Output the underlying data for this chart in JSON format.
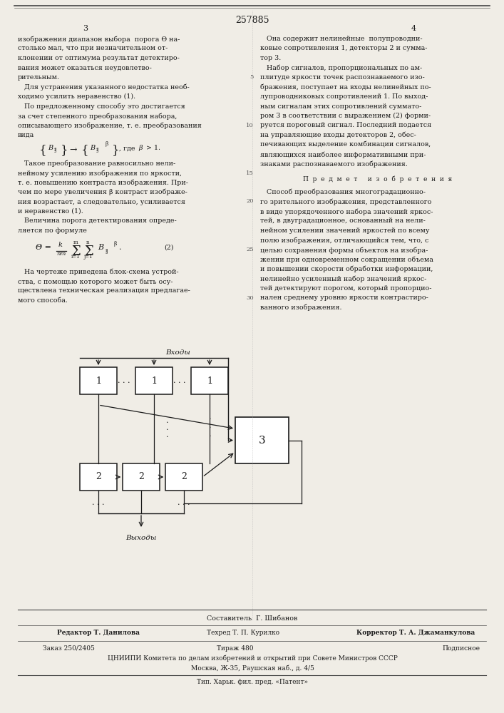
{
  "bg_color": "#f0ede6",
  "text_color": "#1a1a1a",
  "patent_number": "257885",
  "page_left": "3",
  "page_right": "4",
  "col1_lines_1": [
    "изображения диапазон выбора  порога Θ на-",
    "столько мал, что при незначительном от-",
    "клонении от оптимума результат детектиро-",
    "вания может оказаться неудовлетво-",
    "рительным.",
    "   Для устранения указанного недостатка необ-",
    "ходимо усилить неравенство (1).",
    "   По предложенному способу это достигается",
    "за счет степенного преобразования набора,",
    "описывающего изображение, т. е. преобразования",
    "вида"
  ],
  "col1_lines_2": [
    "   Такое преобразование равносильно нели-",
    "нейному усилению изображения по яркости,",
    "т. е. повышению контраста изображения. При-",
    "чем по мере увеличения β контраст изображе-",
    "ния возрастает, а следовательно, усиливается",
    "и неравенство (1).",
    "   Величина порога детектирования опреде-",
    "ляется по формуле"
  ],
  "col1_lines_3": [
    "   На чертеже приведена блок-схема устрой-",
    "ства, с помощью которого может быть осу-",
    "ществлена техническая реализация предлагае-",
    "мого способа."
  ],
  "col2_lines_1": [
    "   Она содержит нелинейные  полупроводни-",
    "ковые сопротивления 1, детекторы 2 и сумма-",
    "тор 3.",
    "   Набор сигналов, пропорциональных по ам-",
    "плитуде яркости точек распознаваемого изо-",
    "бражения, поступает на входы нелинейных по-",
    "лупроводниковых сопротивлений 1. По выход-",
    "ным сигналам этих сопротивлений суммато-",
    "ром 3 в соответствии с выражением (2) форми-",
    "руется пороговый сигнал. Последний подается",
    "на управляющие входы детекторов 2, обес-",
    "печивающих выделение комбинации сигналов,",
    "являющихся наиболее информативными при-",
    "знаками распознаваемого изображения."
  ],
  "predmet_heading": "П  р  е  д  м  е  т     и  з  о  б  р  е  т  е  н  и  я",
  "col2_lines_2": [
    "   Способ преобразования многоградационно-",
    "го зрительного изображения, представленного",
    "в виде упорядоченного набора значений яркос-",
    "тей, в двуградационное, основанный на нели-",
    "нейном усилении значений яркостей по всему",
    "полю изображения, отличающийся тем, что, с",
    "целью сохранения формы объектов на изобра-",
    "жении при одновременном сокращении объема",
    "и повышении скорости обработки информации,",
    "нелинейно усиленный набор значений яркос-",
    "тей детектируют порогом, который пропорцио-",
    "нален среднему уровню яркости контрастиро-",
    "ванного изображения."
  ],
  "footer_sostavitel": "Составитель  Г. Шибанов",
  "footer_redaktor": "Редактор Т. Данилова",
  "footer_tekhred": "Техред Т. П. Курилко",
  "footer_korrektor": "Корректор Т. А. Джаманкулова",
  "footer_zakaz": "Заказ 250/2405",
  "footer_tirazh": "Тираж 480",
  "footer_podpisnoe": "Подписное",
  "footer_org": "ЦНИИПИ Комитета по делам изобретений и открытий при Совете Министров СССР",
  "footer_address": "Москва, Ж-35, Раушская наб., д. 4/5",
  "footer_tip": "Тип. Харьк. фил. пред. «Патент»"
}
